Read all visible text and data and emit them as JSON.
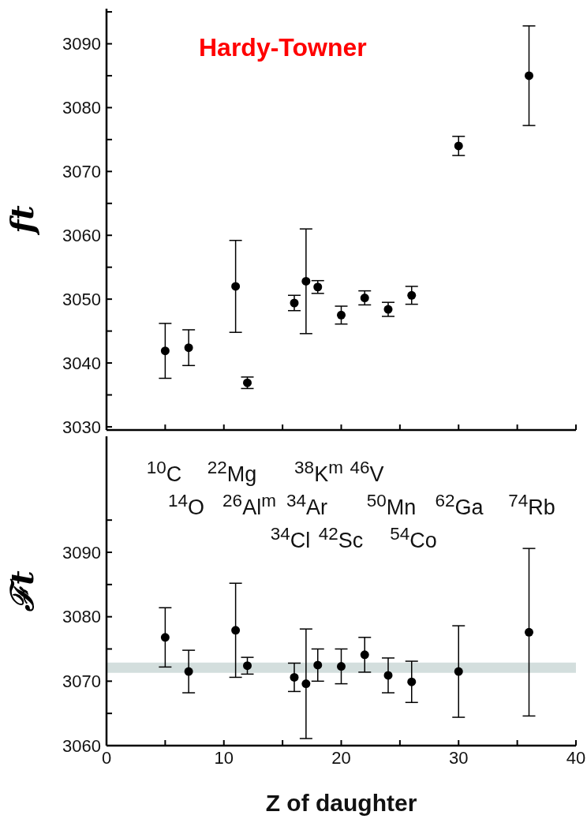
{
  "chart_data": [
    {
      "type": "scatter",
      "title": "Hardy-Towner",
      "ylabel": "ft",
      "x": [
        5,
        7,
        11,
        12,
        16,
        17,
        18,
        20,
        22,
        24,
        26,
        30,
        36
      ],
      "values": [
        3041.9,
        3042.4,
        3052.0,
        3036.9,
        3049.4,
        3052.8,
        3051.9,
        3047.5,
        3050.2,
        3048.4,
        3050.6,
        3074.0,
        3085.0
      ],
      "errors": [
        4.3,
        2.8,
        7.2,
        0.9,
        1.2,
        8.2,
        1.0,
        1.4,
        1.1,
        1.1,
        1.4,
        1.5,
        7.8
      ],
      "color": "#000000",
      "marker": "circle",
      "xlim": [
        0,
        40
      ],
      "xticks": [
        0,
        {
          "value": 5,
          "label": null
        },
        10,
        {
          "value": 15,
          "label": null
        },
        20,
        {
          "value": 25,
          "label": null
        },
        30,
        {
          "value": 35,
          "label": null
        },
        40
      ],
      "ylim": [
        3029.5,
        3095.5
      ],
      "yticks": [
        3030,
        {
          "value": 3035,
          "label": null
        },
        3040,
        {
          "value": 3045,
          "label": null
        },
        3050,
        {
          "value": 3055,
          "label": null
        },
        3060,
        {
          "value": 3065,
          "label": null
        },
        3070,
        {
          "value": 3075,
          "label": null
        },
        3080,
        {
          "value": 3085,
          "label": null
        },
        3090,
        {
          "value": 3095,
          "label": null
        }
      ],
      "tick_labels": "y"
    },
    {
      "type": "scatter",
      "ylabel": "ℱt",
      "xlabel": "Z of daughter",
      "x": [
        5,
        7,
        11,
        12,
        16,
        17,
        18,
        20,
        22,
        24,
        26,
        30,
        36
      ],
      "values": [
        3076.8,
        3071.5,
        3077.9,
        3072.4,
        3070.6,
        3069.6,
        3072.5,
        3072.3,
        3074.1,
        3070.9,
        3069.9,
        3071.5,
        3077.6
      ],
      "errors": [
        4.6,
        3.3,
        7.3,
        1.3,
        2.2,
        8.5,
        2.5,
        2.7,
        2.7,
        2.7,
        3.2,
        7.1,
        13.0
      ],
      "color": "#000000",
      "marker": "circle",
      "xlim": [
        0,
        40
      ],
      "xticks": [
        0,
        {
          "value": 5,
          "label": null
        },
        10,
        {
          "value": 15,
          "label": null
        },
        20,
        {
          "value": 25,
          "label": null
        },
        30,
        {
          "value": 35,
          "label": null
        },
        40
      ],
      "ylim": [
        3060,
        3108
      ],
      "yticks": [
        3060,
        {
          "value": 3065,
          "label": null
        },
        3070,
        {
          "value": 3075,
          "label": null
        },
        3080,
        {
          "value": 3085,
          "label": null
        },
        3090,
        {
          "value": 3095,
          "label": null
        }
      ],
      "bands": [
        {
          "axis": "y",
          "from": 3071.3,
          "to": 3072.9,
          "color": "#d3dedd"
        }
      ],
      "annotations": [
        "$^{10}$C",
        "$^{22}$Mg",
        "$^{38}$K$^{m}$",
        "$^{46}$V",
        "$^{14}$O",
        "$^{26}$Al$^{m}$",
        "$^{34}$Ar",
        "$^{50}$Mn",
        "$^{62}$Ga",
        "$^{74}$Rb",
        "$^{34}$Cl",
        "$^{42}$Sc",
        "$^{54}$Co"
      ]
    }
  ]
}
